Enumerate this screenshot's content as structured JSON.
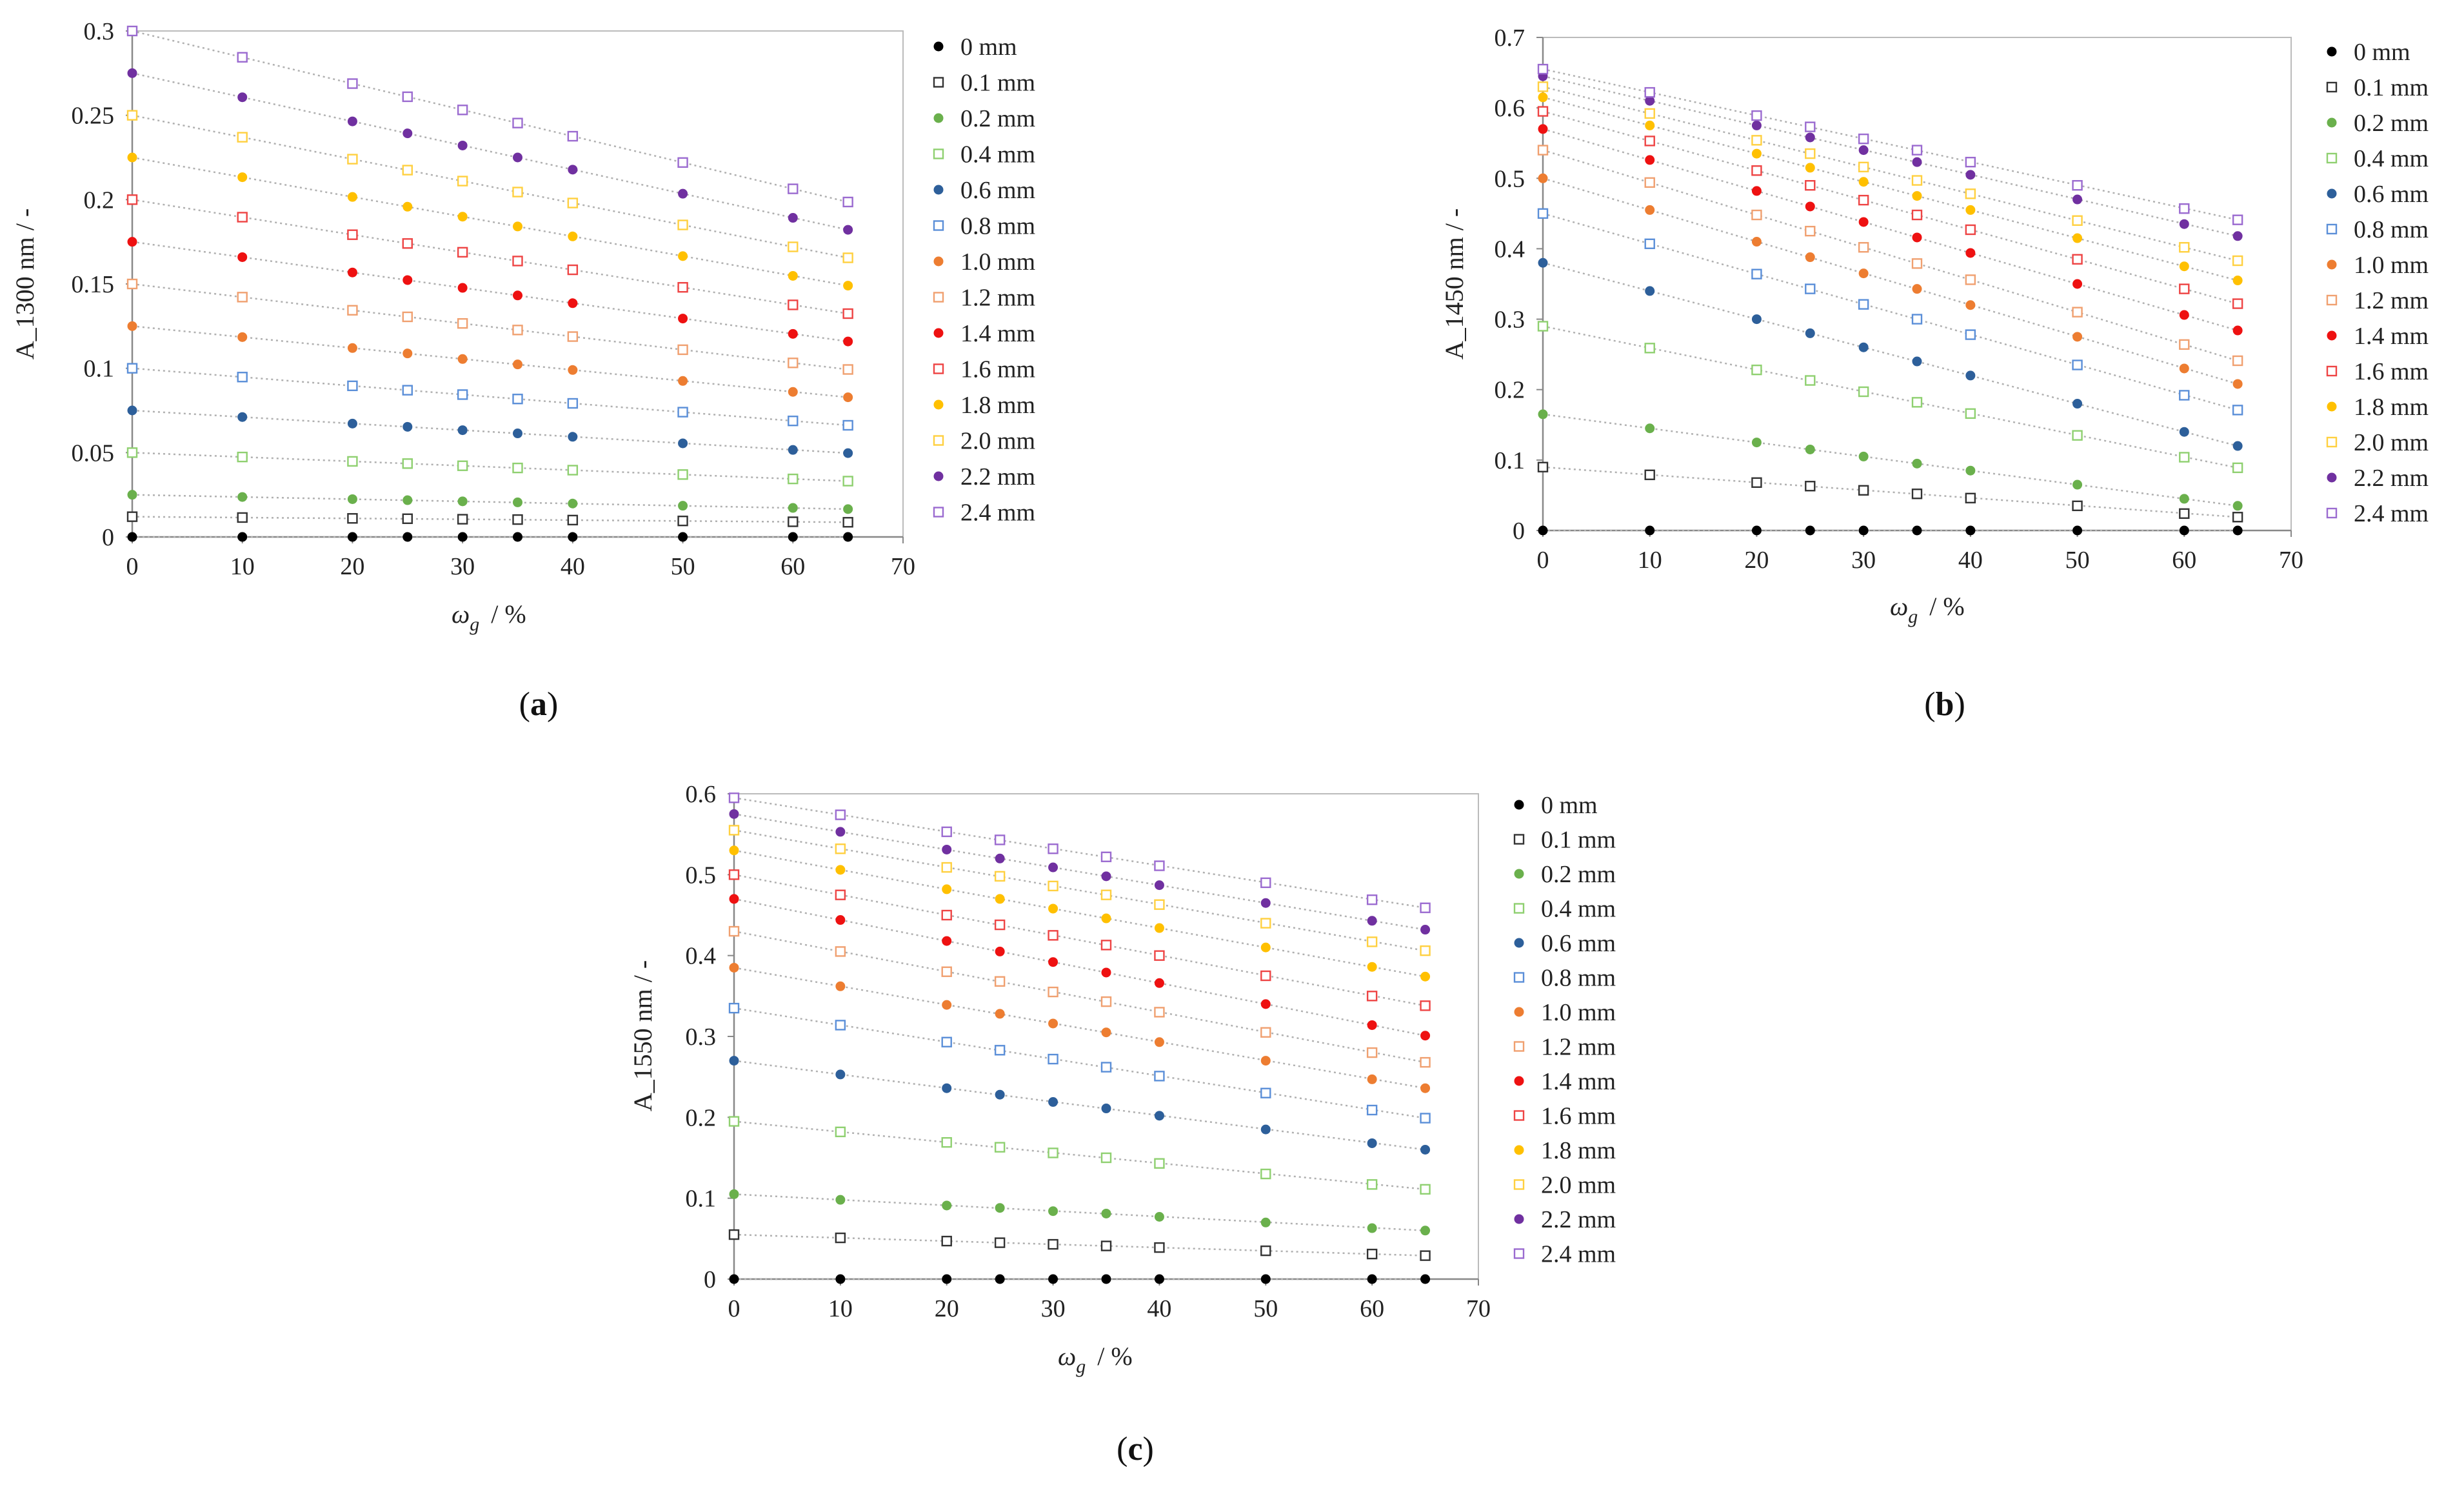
{
  "chart_data": [
    {
      "type": "scatter",
      "id": "a",
      "panel_label": "a",
      "xlabel_main": "ω",
      "xlabel_sub": "g",
      "xlabel_unit": "/ %",
      "ylabel": "A_1300 nm / -",
      "xlim": [
        0,
        70
      ],
      "ylim": [
        0,
        0.3
      ],
      "xticks": [
        "0",
        "10",
        "20",
        "30",
        "40",
        "50",
        "60",
        "70"
      ],
      "yticks": [
        "0",
        "0.05",
        "0.1",
        "0.15",
        "0.2",
        "0.25",
        "0.3"
      ],
      "x": [
        0,
        10,
        20,
        25,
        30,
        35,
        40,
        50,
        60,
        65
      ],
      "series": [
        {
          "name": "0 mm",
          "values": [
            0,
            0,
            0,
            0,
            0,
            0,
            0,
            0,
            0,
            0
          ]
        },
        {
          "name": "0.1 mm",
          "values": [
            0.012,
            0.0115,
            0.011,
            0.0108,
            0.0105,
            0.0103,
            0.01,
            0.0095,
            0.009,
            0.0087
          ]
        },
        {
          "name": "0.2 mm",
          "values": [
            0.025,
            0.0237,
            0.0224,
            0.0218,
            0.0211,
            0.0205,
            0.0198,
            0.0185,
            0.0172,
            0.0165
          ]
        },
        {
          "name": "0.4 mm",
          "values": [
            0.05,
            0.0474,
            0.0448,
            0.0435,
            0.0422,
            0.0409,
            0.0396,
            0.037,
            0.0344,
            0.0331
          ]
        },
        {
          "name": "0.6 mm",
          "values": [
            0.075,
            0.0711,
            0.0672,
            0.0653,
            0.0633,
            0.0614,
            0.0594,
            0.0555,
            0.0516,
            0.0497
          ]
        },
        {
          "name": "0.8 mm",
          "values": [
            0.1,
            0.0948,
            0.0896,
            0.087,
            0.0844,
            0.0818,
            0.0792,
            0.074,
            0.0688,
            0.0662
          ]
        },
        {
          "name": "1.0 mm",
          "values": [
            0.125,
            0.1185,
            0.112,
            0.1088,
            0.1055,
            0.1023,
            0.099,
            0.0925,
            0.086,
            0.0828
          ]
        },
        {
          "name": "1.2 mm",
          "values": [
            0.15,
            0.1422,
            0.1344,
            0.1305,
            0.1266,
            0.1227,
            0.1188,
            0.111,
            0.1032,
            0.0993
          ]
        },
        {
          "name": "1.4 mm",
          "values": [
            0.175,
            0.1659,
            0.1568,
            0.1523,
            0.1477,
            0.1432,
            0.1386,
            0.1295,
            0.1204,
            0.1159
          ]
        },
        {
          "name": "1.6 mm",
          "values": [
            0.2,
            0.1896,
            0.1792,
            0.174,
            0.1688,
            0.1636,
            0.1584,
            0.148,
            0.1376,
            0.1324
          ]
        },
        {
          "name": "1.8 mm",
          "values": [
            0.225,
            0.2133,
            0.2016,
            0.1958,
            0.1899,
            0.1841,
            0.1782,
            0.1665,
            0.1548,
            0.149
          ]
        },
        {
          "name": "2.0 mm",
          "values": [
            0.25,
            0.237,
            0.224,
            0.2175,
            0.211,
            0.2045,
            0.198,
            0.185,
            0.172,
            0.1655
          ]
        },
        {
          "name": "2.2 mm",
          "values": [
            0.275,
            0.2607,
            0.2464,
            0.2393,
            0.2321,
            0.225,
            0.2178,
            0.2035,
            0.1892,
            0.1821
          ]
        },
        {
          "name": "2.4 mm",
          "values": [
            0.3,
            0.2844,
            0.2688,
            0.261,
            0.2532,
            0.2454,
            0.2376,
            0.222,
            0.2064,
            0.1986
          ]
        }
      ]
    },
    {
      "type": "scatter",
      "id": "b",
      "panel_label": "b",
      "xlabel_main": "ω",
      "xlabel_sub": "g",
      "xlabel_unit": "/ %",
      "ylabel": "A_1450 nm / -",
      "xlim": [
        0,
        70
      ],
      "ylim": [
        0,
        0.7
      ],
      "xticks": [
        "0",
        "10",
        "20",
        "30",
        "40",
        "50",
        "60",
        "70"
      ],
      "yticks": [
        "0",
        "0.1",
        "0.2",
        "0.3",
        "0.4",
        "0.5",
        "0.6",
        "0.7"
      ],
      "x": [
        0,
        10,
        20,
        25,
        30,
        35,
        40,
        50,
        60,
        65
      ],
      "series": [
        {
          "name": "0 mm",
          "values": [
            0,
            0,
            0,
            0,
            0,
            0,
            0,
            0,
            0,
            0
          ]
        },
        {
          "name": "0.1 mm",
          "values": [
            0.09,
            0.079,
            0.068,
            0.063,
            0.057,
            0.052,
            0.046,
            0.035,
            0.024,
            0.019
          ]
        },
        {
          "name": "0.2 mm",
          "values": [
            0.165,
            0.145,
            0.125,
            0.115,
            0.105,
            0.095,
            0.085,
            0.065,
            0.045,
            0.035
          ]
        },
        {
          "name": "0.4 mm",
          "values": [
            0.29,
            0.259,
            0.228,
            0.213,
            0.197,
            0.182,
            0.166,
            0.135,
            0.104,
            0.089
          ]
        },
        {
          "name": "0.6 mm",
          "values": [
            0.38,
            0.34,
            0.3,
            0.28,
            0.26,
            0.24,
            0.22,
            0.18,
            0.14,
            0.12
          ]
        },
        {
          "name": "0.8 mm",
          "values": [
            0.45,
            0.407,
            0.364,
            0.343,
            0.321,
            0.3,
            0.278,
            0.235,
            0.192,
            0.171
          ]
        },
        {
          "name": "1.0 mm",
          "values": [
            0.5,
            0.455,
            0.41,
            0.388,
            0.365,
            0.343,
            0.32,
            0.275,
            0.23,
            0.208
          ]
        },
        {
          "name": "1.2 mm",
          "values": [
            0.54,
            0.494,
            0.448,
            0.425,
            0.402,
            0.379,
            0.356,
            0.31,
            0.264,
            0.241
          ]
        },
        {
          "name": "1.4 mm",
          "values": [
            0.57,
            0.526,
            0.482,
            0.46,
            0.438,
            0.416,
            0.394,
            0.35,
            0.306,
            0.284
          ]
        },
        {
          "name": "1.6 mm",
          "values": [
            0.595,
            0.553,
            0.511,
            0.49,
            0.469,
            0.448,
            0.427,
            0.385,
            0.343,
            0.322
          ]
        },
        {
          "name": "1.8 mm",
          "values": [
            0.615,
            0.575,
            0.535,
            0.515,
            0.495,
            0.475,
            0.455,
            0.415,
            0.375,
            0.355
          ]
        },
        {
          "name": "2.0 mm",
          "values": [
            0.63,
            0.592,
            0.554,
            0.535,
            0.516,
            0.497,
            0.478,
            0.44,
            0.402,
            0.383
          ]
        },
        {
          "name": "2.2 mm",
          "values": [
            0.645,
            0.61,
            0.575,
            0.558,
            0.54,
            0.523,
            0.505,
            0.47,
            0.435,
            0.418
          ]
        },
        {
          "name": "2.4 mm",
          "values": [
            0.655,
            0.622,
            0.589,
            0.573,
            0.556,
            0.54,
            0.523,
            0.49,
            0.457,
            0.441
          ]
        }
      ]
    },
    {
      "type": "scatter",
      "id": "c",
      "panel_label": "c",
      "xlabel_main": "ω",
      "xlabel_sub": "g",
      "xlabel_unit": "/ %",
      "ylabel": "A_1550 nm / -",
      "xlim": [
        0,
        70
      ],
      "ylim": [
        0,
        0.6
      ],
      "xticks": [
        "0",
        "10",
        "20",
        "30",
        "40",
        "50",
        "60",
        "70"
      ],
      "yticks": [
        "0",
        "0.1",
        "0.2",
        "0.3",
        "0.4",
        "0.5",
        "0.6"
      ],
      "x": [
        0,
        10,
        20,
        25,
        30,
        35,
        40,
        50,
        60,
        65
      ],
      "series": [
        {
          "name": "0 mm",
          "values": [
            0,
            0,
            0,
            0,
            0,
            0,
            0,
            0,
            0,
            0
          ]
        },
        {
          "name": "0.1 mm",
          "values": [
            0.055,
            0.051,
            0.047,
            0.045,
            0.043,
            0.041,
            0.039,
            0.035,
            0.031,
            0.029
          ]
        },
        {
          "name": "0.2 mm",
          "values": [
            0.105,
            0.098,
            0.091,
            0.088,
            0.084,
            0.081,
            0.077,
            0.07,
            0.063,
            0.06
          ]
        },
        {
          "name": "0.4 mm",
          "values": [
            0.195,
            0.182,
            0.169,
            0.163,
            0.156,
            0.15,
            0.143,
            0.13,
            0.117,
            0.111
          ]
        },
        {
          "name": "0.6 mm",
          "values": [
            0.27,
            0.253,
            0.236,
            0.228,
            0.219,
            0.211,
            0.202,
            0.185,
            0.168,
            0.16
          ]
        },
        {
          "name": "0.8 mm",
          "values": [
            0.335,
            0.314,
            0.293,
            0.283,
            0.272,
            0.262,
            0.251,
            0.23,
            0.209,
            0.199
          ]
        },
        {
          "name": "1.0 mm",
          "values": [
            0.385,
            0.362,
            0.339,
            0.328,
            0.316,
            0.305,
            0.293,
            0.27,
            0.247,
            0.236
          ]
        },
        {
          "name": "1.2 mm",
          "values": [
            0.43,
            0.405,
            0.38,
            0.368,
            0.355,
            0.343,
            0.33,
            0.305,
            0.28,
            0.268
          ]
        },
        {
          "name": "1.4 mm",
          "values": [
            0.47,
            0.444,
            0.418,
            0.405,
            0.392,
            0.379,
            0.366,
            0.34,
            0.314,
            0.301
          ]
        },
        {
          "name": "1.6 mm",
          "values": [
            0.5,
            0.475,
            0.45,
            0.438,
            0.425,
            0.413,
            0.4,
            0.375,
            0.35,
            0.338
          ]
        },
        {
          "name": "1.8 mm",
          "values": [
            0.53,
            0.506,
            0.482,
            0.47,
            0.458,
            0.446,
            0.434,
            0.41,
            0.386,
            0.374
          ]
        },
        {
          "name": "2.0 mm",
          "values": [
            0.555,
            0.532,
            0.509,
            0.498,
            0.486,
            0.475,
            0.463,
            0.44,
            0.417,
            0.406
          ]
        },
        {
          "name": "2.2 mm",
          "values": [
            0.575,
            0.553,
            0.531,
            0.52,
            0.509,
            0.498,
            0.487,
            0.465,
            0.443,
            0.432
          ]
        },
        {
          "name": "2.4 mm",
          "values": [
            0.595,
            0.574,
            0.553,
            0.543,
            0.532,
            0.522,
            0.511,
            0.49,
            0.469,
            0.459
          ]
        }
      ]
    }
  ],
  "series_styles": [
    {
      "color": "#000000",
      "marker": "filled"
    },
    {
      "color": "#333333",
      "marker": "hollow"
    },
    {
      "color": "#6ab04c",
      "marker": "filled"
    },
    {
      "color": "#8fd070",
      "marker": "hollow"
    },
    {
      "color": "#2d5f9a",
      "marker": "filled"
    },
    {
      "color": "#5b8fd8",
      "marker": "hollow"
    },
    {
      "color": "#ed7d31",
      "marker": "filled"
    },
    {
      "color": "#f0a070",
      "marker": "hollow"
    },
    {
      "color": "#ee1111",
      "marker": "filled"
    },
    {
      "color": "#ee4444",
      "marker": "hollow"
    },
    {
      "color": "#ffc000",
      "marker": "filled"
    },
    {
      "color": "#ffd040",
      "marker": "hollow"
    },
    {
      "color": "#7030a0",
      "marker": "filled"
    },
    {
      "color": "#9b6bd0",
      "marker": "hollow"
    }
  ]
}
